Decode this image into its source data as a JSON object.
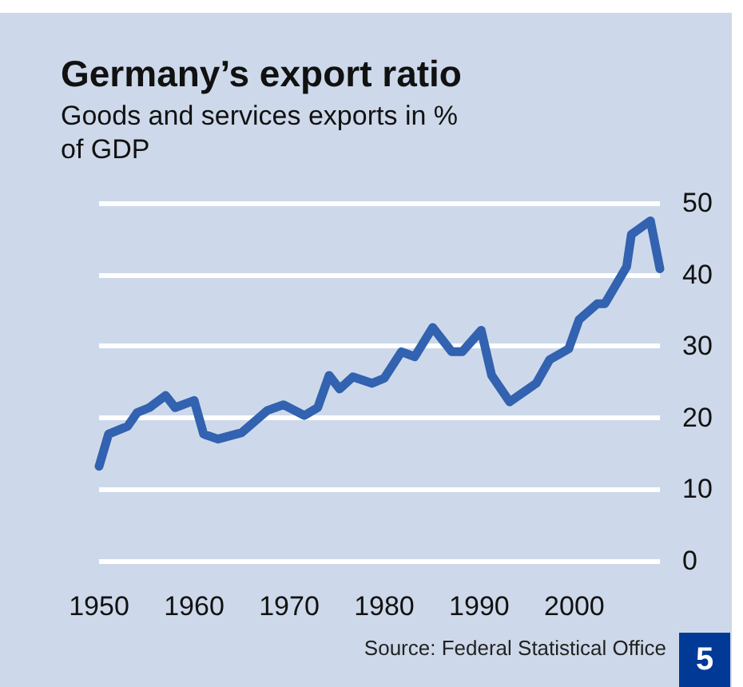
{
  "chart_data": {
    "type": "line",
    "title": "Germany’s export ratio",
    "subtitle": "Goods and services exports in % of GDP",
    "x": [
      1950,
      1951,
      1953,
      1954,
      1955.3,
      1957,
      1958,
      1960,
      1961,
      1962.5,
      1965,
      1967.7,
      1969.4,
      1971.6,
      1973,
      1974.2,
      1975.3,
      1976.7,
      1978.7,
      1980,
      1981.8,
      1983.2,
      1985.1,
      1987.1,
      1988.2,
      1990.2,
      1991.3,
      1993.2,
      1996,
      1997.4,
      1999.4,
      2000.5,
      2002.4,
      2003.2,
      2005.5,
      2006,
      2008,
      2009
    ],
    "series": [
      {
        "color": "#3262b0",
        "values": [
          13.2,
          17.7,
          18.8,
          20.7,
          21.4,
          23.1,
          21.4,
          22.4,
          17.7,
          17.0,
          17.9,
          21.0,
          21.8,
          20.3,
          21.4,
          25.9,
          24.0,
          25.7,
          24.8,
          25.5,
          29.2,
          28.5,
          32.6,
          29.2,
          29.2,
          32.2,
          25.9,
          22.2,
          24.8,
          28.1,
          29.6,
          33.7,
          35.9,
          35.9,
          41.1,
          45.6,
          47.5,
          40.8
        ]
      }
    ],
    "xlim": [
      1950,
      2009
    ],
    "xticks": [
      1950,
      1960,
      1970,
      1980,
      1990,
      2000
    ],
    "ylim": [
      0,
      50
    ],
    "yticks": [
      0,
      10,
      20,
      30,
      40,
      50
    ],
    "grid": "y",
    "marker": "none",
    "line_style": "solid",
    "annotations": [
      "Source: Federal Statistical Office",
      "5"
    ]
  }
}
